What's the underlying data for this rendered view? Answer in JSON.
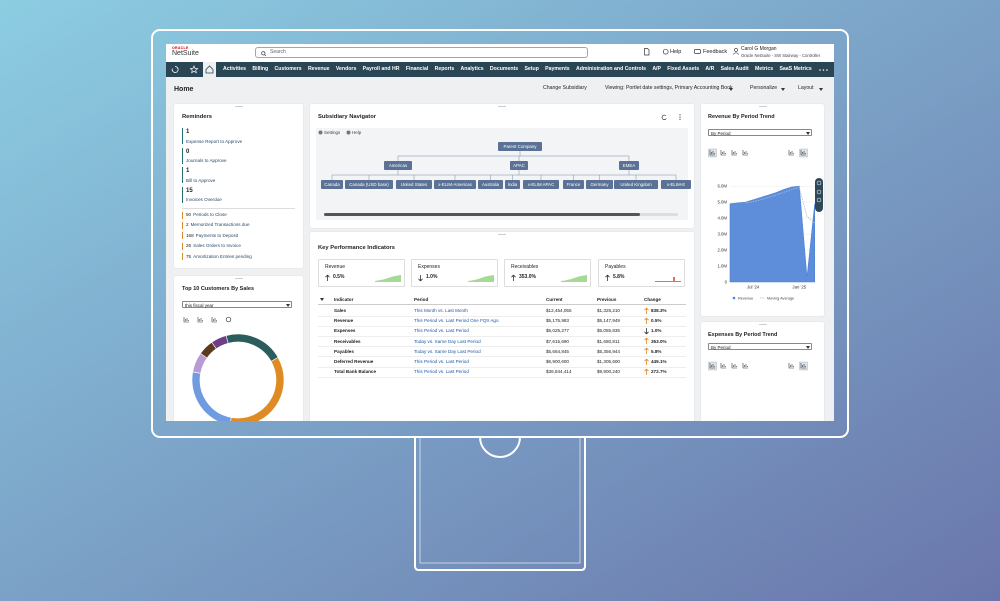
{
  "header": {
    "logo_top": "ORACLE",
    "logo": "NetSuite",
    "search": "Search",
    "help": "Help",
    "feedback": "Feedback",
    "user_name": "Carol G Morgan",
    "user_role": "Oracle NetSuite - SW Stairway - Controller"
  },
  "nav": [
    "Activities",
    "Billing",
    "Customers",
    "Revenue",
    "Vendors",
    "Payroll and HR",
    "Financial",
    "Reports",
    "Analytics",
    "Documents",
    "Setup",
    "Payments",
    "Administration and Controls",
    "A/P",
    "Fixed Assets",
    "A/R",
    "Sales Audit",
    "Metrics",
    "SaaS Metrics"
  ],
  "page": {
    "title": "Home",
    "change_subsidiary": "Change Subsidiary",
    "viewing": "Viewing: Portlet date settings, Primary Accounting Book",
    "personalize": "Personalize",
    "layout": "Layout"
  },
  "reminders": {
    "title": "Reminders",
    "primary": [
      {
        "count": 1,
        "label": "Expense Report to Approve"
      },
      {
        "count": 0,
        "label": "Journals to Approve"
      },
      {
        "count": 1,
        "label": "Bill to Approve"
      },
      {
        "count": 15,
        "label": "Invoices Overdue"
      }
    ],
    "secondary": [
      {
        "count": 50,
        "label": "Periods to Close"
      },
      {
        "count": 2,
        "label": "Memorized Transactions due"
      },
      {
        "count": 168,
        "label": "Payments to Deposit"
      },
      {
        "count": 26,
        "label": "Sales Orders to Invoice"
      },
      {
        "count": 75,
        "label": "Amortization Entries pending"
      }
    ]
  },
  "top_customers": {
    "title": "Top 10 Customers By Sales",
    "filter": "this fiscal year"
  },
  "subsidiary_navigator": {
    "title": "Subsidiary Navigator",
    "settings": "Settings",
    "help": "Help",
    "root": "Parent Company",
    "regions": [
      {
        "label": "Americas",
        "children": [
          "Canada",
          "Canada (USD base)",
          "United States",
          "x-ELIM-Americas"
        ]
      },
      {
        "label": "APAC",
        "children": [
          "Australia",
          "India",
          "x-ELIM APAC"
        ]
      },
      {
        "label": "EMEA",
        "children": [
          "France",
          "Germany",
          "United Kingdom",
          "x-ELIM-E"
        ]
      }
    ]
  },
  "kpi": {
    "title": "Key Performance Indicators",
    "cards": [
      {
        "label": "Revenue",
        "change": "0.5%",
        "direction": "up"
      },
      {
        "label": "Expenses",
        "change": "1.0%",
        "direction": "down"
      },
      {
        "label": "Receivables",
        "change": "353.0%",
        "direction": "up"
      },
      {
        "label": "Payables",
        "change": "5.8%",
        "direction": "up"
      }
    ],
    "columns": [
      "Indicator",
      "Period",
      "Current",
      "Previous",
      "Change"
    ],
    "rows": [
      {
        "indicator": "Sales",
        "period": "This Month vs. Last Month",
        "current": "$12,454,055",
        "previous": "$1,325,210",
        "change": "838.3%",
        "direction": "up"
      },
      {
        "indicator": "Revenue",
        "period": "This Period vs. Last Period One FQtr Ago",
        "current": "$5,175,983",
        "previous": "$5,147,949",
        "change": "0.5%",
        "direction": "up"
      },
      {
        "indicator": "Expenses",
        "period": "This Period vs. Last Period",
        "current": "$5,025,277",
        "previous": "$5,055,835",
        "change": "1.0%",
        "direction": "down"
      },
      {
        "indicator": "Receivables",
        "period": "Today vs. Same Day Last Period",
        "current": "$7,615,690",
        "previous": "$1,680,811",
        "change": "353.0%",
        "direction": "up"
      },
      {
        "indicator": "Payables",
        "period": "Today vs. Same Day Last Period",
        "current": "$5,664,845",
        "previous": "$5,356,944",
        "change": "5.8%",
        "direction": "up"
      },
      {
        "indicator": "Deferred Revenue",
        "period": "This Period vs. Last Period",
        "current": "$6,900,600",
        "previous": "$1,305,600",
        "change": "449.1%",
        "direction": "up"
      },
      {
        "indicator": "Total Bank Balance",
        "period": "This Period vs. Last Period",
        "current": "$36,844,414",
        "previous": "$9,900,240",
        "change": "272.7%",
        "direction": "up"
      }
    ]
  },
  "revenue_trend": {
    "title": "Revenue By Period Trend",
    "filter": "By Period"
  },
  "expenses_trend": {
    "title": "Expenses By Period Trend",
    "filter": "By Period"
  },
  "chart_data": [
    {
      "type": "pie",
      "values": [
        21,
        36,
        25,
        7,
        5.5,
        5.5
      ],
      "colors": [
        "#2b5d5c",
        "#e08a23",
        "#6f9be0",
        "#b79ad6",
        "#5b3a1e",
        "#6c3f86"
      ]
    },
    {
      "type": "area",
      "categories": [
        null,
        null,
        null,
        "Jul '24",
        null,
        null,
        null,
        null,
        null,
        "Jan '25",
        null,
        null
      ],
      "series": [
        {
          "name": "Revenue",
          "color": "#4c82d6",
          "values": [
            4900000,
            4950000,
            5000000,
            5150000,
            5300000,
            5450000,
            5600000,
            5800000,
            5950000,
            6000000,
            300000,
            4900000
          ]
        },
        {
          "name": "Moving Average",
          "color": "#a9bddb",
          "values": [
            null,
            null,
            4950000,
            5030000,
            5150000,
            5300000,
            5450000,
            5620000,
            5780000,
            5920000,
            4100000,
            3700000
          ]
        }
      ],
      "ylim": [
        0,
        6200000
      ],
      "yticks": [
        0,
        {
          "value": 1000000,
          "label": "1.0M"
        },
        {
          "value": 2000000,
          "label": "2.0M"
        },
        {
          "value": 3000000,
          "label": "3.0M"
        },
        {
          "value": 4000000,
          "label": "4.0M"
        },
        {
          "value": 5000000,
          "label": "5.0M"
        },
        {
          "value": 6000000,
          "label": "6.0M"
        }
      ],
      "grid": true
    }
  ]
}
